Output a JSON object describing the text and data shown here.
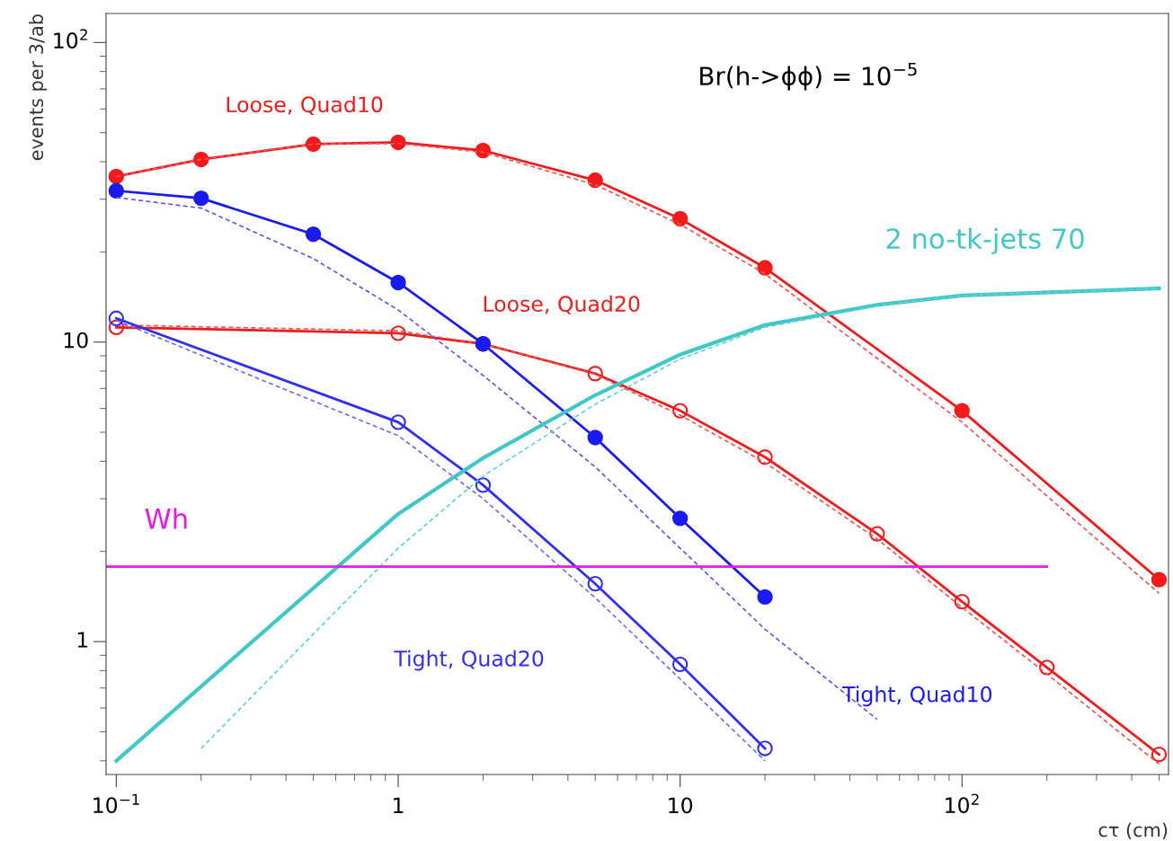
{
  "chart_data": {
    "type": "line",
    "xlabel": "cτ (cm)",
    "ylabel": "events per 3/ab",
    "log": "xy",
    "grid": false,
    "legend": false,
    "xlim": [
      0.092,
      540
    ],
    "ylim": [
      0.36,
      125
    ],
    "xticks": [
      {
        "value": 0.1,
        "label": "10$^{−1}$"
      },
      1,
      10,
      {
        "value": 100,
        "label": "10$^{2}$"
      }
    ],
    "yticks": [
      1,
      10,
      {
        "value": 100,
        "label": "10$^{2}$"
      }
    ],
    "annotations": [
      "Br(h->ϕϕ) = 10$^{−5}$"
    ],
    "series": [
      {
        "name": "Loose, Quad10",
        "color": "#f21a1a",
        "line_style": "solid",
        "marker": "circle",
        "x": [
          0.1,
          0.2,
          0.5,
          1,
          2,
          5,
          10,
          20,
          100,
          500
        ],
        "values": [
          35.7,
          40.7,
          45.8,
          46.4,
          43.6,
          34.7,
          25.8,
          17.7,
          5.9,
          1.61
        ]
      },
      {
        "color": "#f25555",
        "line_style": "dashed",
        "marker": "none",
        "x": [
          0.1,
          0.2,
          0.5,
          1,
          2,
          5,
          10,
          20,
          100,
          500
        ],
        "values": [
          35.7,
          40.7,
          45.8,
          46,
          43,
          33.5,
          24.7,
          16.9,
          5.4,
          1.45
        ]
      },
      {
        "name": "Loose, Quad20",
        "color": "#f21a1a",
        "line_style": "solid",
        "marker": "circle",
        "x": [
          0.1,
          1,
          2,
          5,
          10,
          20,
          50,
          100,
          200,
          500
        ],
        "values": [
          11.2,
          10.7,
          9.86,
          7.85,
          5.9,
          4.13,
          2.29,
          1.36,
          0.82,
          0.42
        ]
      },
      {
        "color": "#f25555",
        "line_style": "dashed",
        "marker": "none",
        "x": [
          0.1,
          1,
          2,
          5,
          10,
          20,
          50,
          100,
          200,
          500
        ],
        "values": [
          11.4,
          10.9,
          9.86,
          7.8,
          5.7,
          3.96,
          2.2,
          1.3,
          0.78,
          0.39
        ]
      },
      {
        "name": "Tight, Quad10",
        "color": "#1a1af2",
        "line_style": "solid",
        "marker": "circle",
        "x": [
          0.1,
          0.2,
          0.5,
          1,
          2,
          5,
          10,
          20
        ],
        "values": [
          32,
          30.2,
          22.9,
          15.8,
          9.86,
          4.8,
          2.58,
          1.41
        ]
      },
      {
        "color": "#5a5aea",
        "line_style": "dashed",
        "marker": "none",
        "x": [
          0.1,
          0.2,
          0.5,
          1,
          2,
          5,
          10,
          20,
          50
        ],
        "values": [
          30.4,
          28,
          19,
          12.8,
          7.74,
          3.83,
          2.05,
          1.1,
          0.55
        ]
      },
      {
        "name": "Tight, Quad20",
        "color": "#3030f0",
        "line_style": "solid",
        "marker": "circle",
        "x": [
          0.1,
          1,
          2,
          5,
          10,
          20
        ],
        "values": [
          12,
          5.4,
          3.33,
          1.56,
          0.84,
          0.44
        ]
      },
      {
        "color": "#7070ee",
        "line_style": "dashed",
        "marker": "none",
        "x": [
          0.1,
          1,
          2,
          5,
          10,
          20
        ],
        "values": [
          11.8,
          4.87,
          3.0,
          1.4,
          0.75,
          0.4
        ]
      },
      {
        "name": "2 no-tk-jets 70",
        "color": "#40c8c8",
        "line_style": "solid",
        "marker": "none",
        "x": [
          0.1,
          1,
          2,
          5,
          10,
          20,
          50,
          100,
          500
        ],
        "values": [
          0.4,
          2.67,
          4.1,
          6.65,
          9.08,
          11.4,
          13.3,
          14.3,
          15.1
        ]
      },
      {
        "color": "#60d4d4",
        "line_style": "dashed",
        "marker": "none",
        "x": [
          0.2,
          0.5,
          1,
          2,
          5,
          10,
          20,
          50,
          100,
          500
        ],
        "values": [
          0.44,
          1.06,
          2.05,
          3.57,
          6.2,
          8.77,
          11.2,
          13.2,
          14.3,
          15.1
        ]
      },
      {
        "name": "Wh",
        "color": "#e619e6",
        "line_style": "solid",
        "marker": "none",
        "x": [
          0.092,
          200
        ],
        "values": [
          1.78,
          1.78
        ]
      }
    ]
  }
}
